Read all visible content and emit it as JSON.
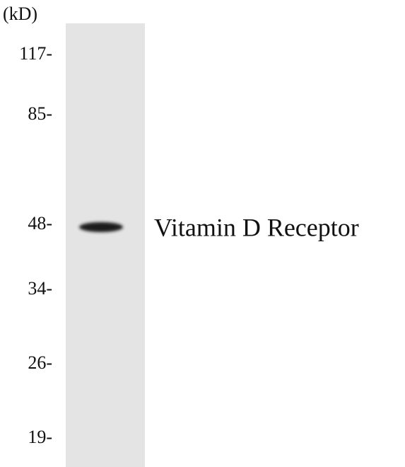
{
  "unit_label": "(kD)",
  "markers": [
    "117-",
    "85-",
    "48-",
    "34-",
    "26-",
    "19-"
  ],
  "band_label": "Vitamin D Receptor"
}
